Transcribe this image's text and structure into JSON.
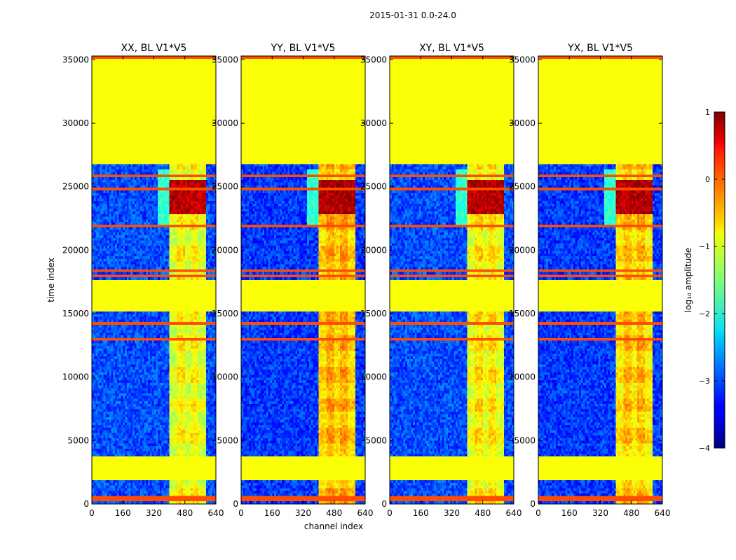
{
  "chart_data": {
    "type": "heatmap",
    "suptitle": "2015-01-31 0.0-24.0",
    "xlabel": "channel index",
    "ylabel": "time index",
    "xlim": [
      0,
      640
    ],
    "ylim": [
      0,
      35300
    ],
    "xticks": [
      0,
      160,
      320,
      480,
      640
    ],
    "yticks": [
      0,
      5000,
      10000,
      15000,
      20000,
      25000,
      30000,
      35000
    ],
    "colorbar": {
      "label": "log₁₀ amplitude",
      "range": [
        -4,
        1
      ],
      "ticks": [
        1,
        0,
        -1,
        -2,
        -3,
        -4
      ],
      "colormap": "jet"
    },
    "flagged_time_ranges": [
      [
        1800,
        3650
      ],
      [
        15150,
        17700
      ],
      [
        26700,
        35000
      ]
    ],
    "flagged_value": -0.9,
    "rfi_lines": [
      300,
      600,
      13000,
      14200,
      18000,
      18400,
      22000,
      24800,
      25800,
      35100
    ],
    "active_channel_range": [
      400,
      590
    ],
    "panels": [
      {
        "title": "XX, BL V1*V5",
        "background": -3.0,
        "band_level": -1.1,
        "peak_level": 0.7
      },
      {
        "title": "YY, BL V1*V5",
        "background": -3.1,
        "band_level": -0.7,
        "peak_level": 0.8
      },
      {
        "title": "XY, BL V1*V5",
        "background": -3.0,
        "band_level": -1.0,
        "peak_level": 0.75
      },
      {
        "title": "YX, BL V1*V5",
        "background": -3.1,
        "band_level": -0.8,
        "peak_level": 0.75
      }
    ]
  }
}
